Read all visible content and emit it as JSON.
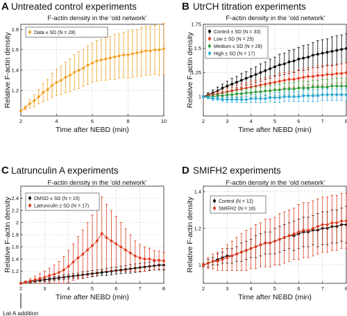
{
  "chart_data": [
    {
      "panel": "A",
      "heading": "Untreated control experiments",
      "title": "F-actin density in the ‘old network’",
      "type": "line",
      "xlabel": "Time after NEBD (min)",
      "ylabel": "Relative F-actin density",
      "xlim": [
        2,
        10
      ],
      "ylim": [
        0.95,
        1.85
      ],
      "xticks": [
        2,
        4,
        6,
        8,
        10
      ],
      "yticks": [
        1.2,
        1.4,
        1.6,
        1.8
      ],
      "grid": true,
      "legend_position": "top-left",
      "series": [
        {
          "name": "Data ± SD (N = 28)",
          "color": "#f0a020",
          "marker": "circle",
          "x_start": 2,
          "x_end": 10,
          "values": [
            1.0,
            1.03,
            1.07,
            1.1,
            1.14,
            1.18,
            1.21,
            1.25,
            1.28,
            1.3,
            1.33,
            1.35,
            1.38,
            1.4,
            1.42,
            1.45,
            1.47,
            1.49,
            1.5,
            1.51,
            1.52,
            1.53,
            1.54,
            1.55,
            1.55,
            1.56,
            1.57,
            1.58,
            1.59,
            1.59,
            1.6,
            1.6,
            1.61
          ],
          "sd": [
            0.01,
            0.02,
            0.04,
            0.06,
            0.07,
            0.09,
            0.1,
            0.12,
            0.13,
            0.14,
            0.15,
            0.16,
            0.17,
            0.18,
            0.18,
            0.19,
            0.19,
            0.2,
            0.2,
            0.21,
            0.21,
            0.22,
            0.22,
            0.22,
            0.23,
            0.23,
            0.23,
            0.24,
            0.24,
            0.24,
            0.24,
            0.25,
            0.25
          ]
        }
      ]
    },
    {
      "panel": "B",
      "heading": "UtrCH titration experiments",
      "title": "F-actin density in the ‘old network’",
      "type": "line",
      "xlabel": "Time after NEBD (min)",
      "ylabel": "Relative F-actin density",
      "xlim": [
        2,
        8
      ],
      "ylim": [
        0.8,
        1.75
      ],
      "xticks": [
        2,
        3,
        4,
        5,
        6,
        7,
        8
      ],
      "yticks": [
        1.0,
        1.25,
        1.5,
        1.75
      ],
      "grid": true,
      "legend_position": "top-left",
      "series": [
        {
          "name": "Control ± SD (N = 33)",
          "color": "#000000",
          "marker": "circle",
          "x_start": 2,
          "x_end": 8,
          "values": [
            1.0,
            1.02,
            1.04,
            1.06,
            1.09,
            1.11,
            1.13,
            1.15,
            1.17,
            1.19,
            1.21,
            1.23,
            1.25,
            1.27,
            1.29,
            1.31,
            1.33,
            1.34,
            1.36,
            1.37,
            1.39,
            1.4,
            1.41,
            1.43,
            1.44,
            1.45,
            1.46,
            1.47,
            1.48,
            1.49,
            1.5
          ],
          "sd": [
            0.01,
            0.02,
            0.03,
            0.04,
            0.04,
            0.05,
            0.06,
            0.06,
            0.07,
            0.07,
            0.08,
            0.08,
            0.09,
            0.09,
            0.1,
            0.1,
            0.11,
            0.11,
            0.12,
            0.12,
            0.12,
            0.13,
            0.13,
            0.13,
            0.14,
            0.14,
            0.14,
            0.15,
            0.15,
            0.15,
            0.15
          ]
        },
        {
          "name": "Low ± SD (N = 25)",
          "color": "#e03a1e",
          "marker": "circle",
          "x_start": 2,
          "x_end": 8,
          "values": [
            1.0,
            1.01,
            1.02,
            1.03,
            1.04,
            1.05,
            1.06,
            1.07,
            1.08,
            1.09,
            1.1,
            1.11,
            1.12,
            1.13,
            1.14,
            1.15,
            1.16,
            1.17,
            1.18,
            1.18,
            1.19,
            1.2,
            1.21,
            1.21,
            1.22,
            1.22,
            1.23,
            1.23,
            1.24,
            1.24,
            1.25
          ],
          "sd": [
            0.01,
            0.02,
            0.02,
            0.03,
            0.03,
            0.04,
            0.04,
            0.05,
            0.05,
            0.05,
            0.06,
            0.06,
            0.06,
            0.07,
            0.07,
            0.07,
            0.08,
            0.08,
            0.08,
            0.08,
            0.09,
            0.09,
            0.09,
            0.09,
            0.1,
            0.1,
            0.1,
            0.1,
            0.1,
            0.1,
            0.1
          ]
        },
        {
          "name": "Medium ± SD (N = 29)",
          "color": "#2a9d3a",
          "marker": "circle",
          "x_start": 2,
          "x_end": 8,
          "values": [
            1.0,
            1.0,
            1.0,
            1.01,
            1.01,
            1.02,
            1.02,
            1.03,
            1.03,
            1.04,
            1.04,
            1.05,
            1.05,
            1.06,
            1.06,
            1.07,
            1.07,
            1.08,
            1.08,
            1.08,
            1.09,
            1.09,
            1.09,
            1.1,
            1.1,
            1.1,
            1.1,
            1.11,
            1.11,
            1.11,
            1.11
          ],
          "sd": [
            0.01,
            0.01,
            0.02,
            0.02,
            0.03,
            0.03,
            0.03,
            0.04,
            0.04,
            0.04,
            0.05,
            0.05,
            0.05,
            0.05,
            0.06,
            0.06,
            0.06,
            0.06,
            0.06,
            0.07,
            0.07,
            0.07,
            0.07,
            0.07,
            0.07,
            0.08,
            0.08,
            0.08,
            0.08,
            0.08,
            0.08
          ]
        },
        {
          "name": "High ± SD (N = 17)",
          "color": "#28a8d8",
          "marker": "circle",
          "x_start": 2,
          "x_end": 8,
          "values": [
            1.0,
            0.99,
            0.98,
            0.98,
            0.97,
            0.97,
            0.97,
            0.97,
            0.97,
            0.97,
            0.98,
            0.98,
            0.98,
            0.98,
            0.99,
            0.99,
            0.99,
            1.0,
            1.0,
            1.0,
            1.0,
            1.01,
            1.01,
            1.01,
            1.01,
            1.02,
            1.02,
            1.02,
            1.02,
            1.02,
            1.02
          ],
          "sd": [
            0.01,
            0.01,
            0.02,
            0.02,
            0.02,
            0.03,
            0.03,
            0.03,
            0.03,
            0.03,
            0.04,
            0.04,
            0.04,
            0.04,
            0.04,
            0.05,
            0.05,
            0.05,
            0.05,
            0.05,
            0.05,
            0.06,
            0.06,
            0.06,
            0.06,
            0.06,
            0.06,
            0.06,
            0.06,
            0.06,
            0.06
          ]
        }
      ]
    },
    {
      "panel": "C",
      "heading": "Latrunculin A experiments",
      "title": "F-actin density in the ‘old network’",
      "type": "line",
      "xlabel": "Time after NEBD (min)",
      "ylabel": "Relative F-actin density",
      "xlim": [
        2,
        8
      ],
      "ylim": [
        1.0,
        2.6
      ],
      "xticks": [
        2,
        3,
        4,
        5,
        6,
        7,
        8
      ],
      "yticks": [
        1.2,
        1.4,
        1.6,
        1.8,
        2.0,
        2.2,
        2.4
      ],
      "grid": true,
      "legend_position": "top-left",
      "annotation": "Lat A addition",
      "annotation_x": 2,
      "series": [
        {
          "name": "DMSO ± SD (N = 15)",
          "color": "#000000",
          "marker": "circle",
          "x_start": 2,
          "x_end": 8,
          "values": [
            1.0,
            1.02,
            1.03,
            1.04,
            1.05,
            1.06,
            1.07,
            1.08,
            1.09,
            1.1,
            1.11,
            1.12,
            1.13,
            1.14,
            1.15,
            1.16,
            1.17,
            1.18,
            1.19,
            1.2,
            1.21,
            1.22,
            1.23,
            1.24,
            1.25,
            1.26,
            1.27,
            1.28,
            1.29,
            1.3,
            1.3
          ],
          "sd": [
            0.01,
            0.01,
            0.02,
            0.02,
            0.02,
            0.03,
            0.03,
            0.03,
            0.03,
            0.04,
            0.04,
            0.04,
            0.04,
            0.05,
            0.05,
            0.05,
            0.05,
            0.05,
            0.06,
            0.06,
            0.06,
            0.06,
            0.06,
            0.07,
            0.07,
            0.07,
            0.07,
            0.07,
            0.07,
            0.08,
            0.08
          ]
        },
        {
          "name": "Latrunculin ± SD (N = 17)",
          "color": "#e03a1e",
          "marker": "circle",
          "x_start": 2,
          "x_end": 8,
          "values": [
            1.0,
            1.02,
            1.04,
            1.06,
            1.08,
            1.1,
            1.13,
            1.15,
            1.18,
            1.22,
            1.28,
            1.35,
            1.42,
            1.48,
            1.55,
            1.62,
            1.7,
            1.82,
            1.75,
            1.7,
            1.65,
            1.6,
            1.55,
            1.5,
            1.45,
            1.42,
            1.4,
            1.4,
            1.38,
            1.38,
            1.37
          ],
          "sd": [
            0.01,
            0.02,
            0.04,
            0.06,
            0.08,
            0.1,
            0.12,
            0.15,
            0.18,
            0.22,
            0.26,
            0.3,
            0.35,
            0.4,
            0.45,
            0.5,
            0.55,
            0.6,
            0.55,
            0.5,
            0.45,
            0.4,
            0.35,
            0.3,
            0.25,
            0.22,
            0.2,
            0.18,
            0.16,
            0.15,
            0.14
          ]
        }
      ]
    },
    {
      "panel": "D",
      "heading": "SMIFH2 experiments",
      "title": "F-actin density in the ‘old network’",
      "type": "line",
      "xlabel": "Time after NEBD (min)",
      "ylabel": "Relative F-actin density",
      "xlim": [
        2,
        8
      ],
      "ylim": [
        0.9,
        1.43
      ],
      "xticks": [
        2,
        3,
        4,
        5,
        6,
        7,
        8
      ],
      "yticks": [
        1.0,
        1.2,
        1.4
      ],
      "grid": true,
      "legend_position": "top-left",
      "series": [
        {
          "name": "Control (N = 12)",
          "color": "#000000",
          "marker": "circle",
          "x_start": 2,
          "x_end": 8,
          "values": [
            1.0,
            1.01,
            1.02,
            1.03,
            1.04,
            1.05,
            1.05,
            1.06,
            1.07,
            1.08,
            1.09,
            1.1,
            1.11,
            1.12,
            1.12,
            1.13,
            1.14,
            1.15,
            1.16,
            1.16,
            1.17,
            1.18,
            1.18,
            1.19,
            1.19,
            1.2,
            1.2,
            1.21,
            1.21,
            1.22,
            1.22
          ],
          "sd": [
            0.01,
            0.02,
            0.02,
            0.03,
            0.03,
            0.04,
            0.04,
            0.04,
            0.05,
            0.05,
            0.05,
            0.06,
            0.06,
            0.06,
            0.06,
            0.07,
            0.07,
            0.07,
            0.07,
            0.08,
            0.08,
            0.08,
            0.08,
            0.08,
            0.09,
            0.09,
            0.09,
            0.09,
            0.09,
            0.09,
            0.1
          ]
        },
        {
          "name": "SMIFH2 (N = 18)",
          "color": "#e03a1e",
          "marker": "circle",
          "x_start": 2,
          "x_end": 8,
          "values": [
            1.0,
            1.01,
            1.02,
            1.02,
            1.03,
            1.04,
            1.05,
            1.06,
            1.07,
            1.08,
            1.09,
            1.1,
            1.11,
            1.12,
            1.12,
            1.13,
            1.14,
            1.15,
            1.16,
            1.17,
            1.18,
            1.19,
            1.19,
            1.2,
            1.21,
            1.22,
            1.22,
            1.23,
            1.23,
            1.24,
            1.24
          ],
          "sd": [
            0.01,
            0.03,
            0.04,
            0.05,
            0.06,
            0.07,
            0.08,
            0.09,
            0.1,
            0.11,
            0.11,
            0.12,
            0.12,
            0.13,
            0.13,
            0.13,
            0.14,
            0.14,
            0.14,
            0.14,
            0.15,
            0.15,
            0.15,
            0.15,
            0.15,
            0.15,
            0.15,
            0.15,
            0.15,
            0.15,
            0.15
          ]
        }
      ]
    }
  ]
}
